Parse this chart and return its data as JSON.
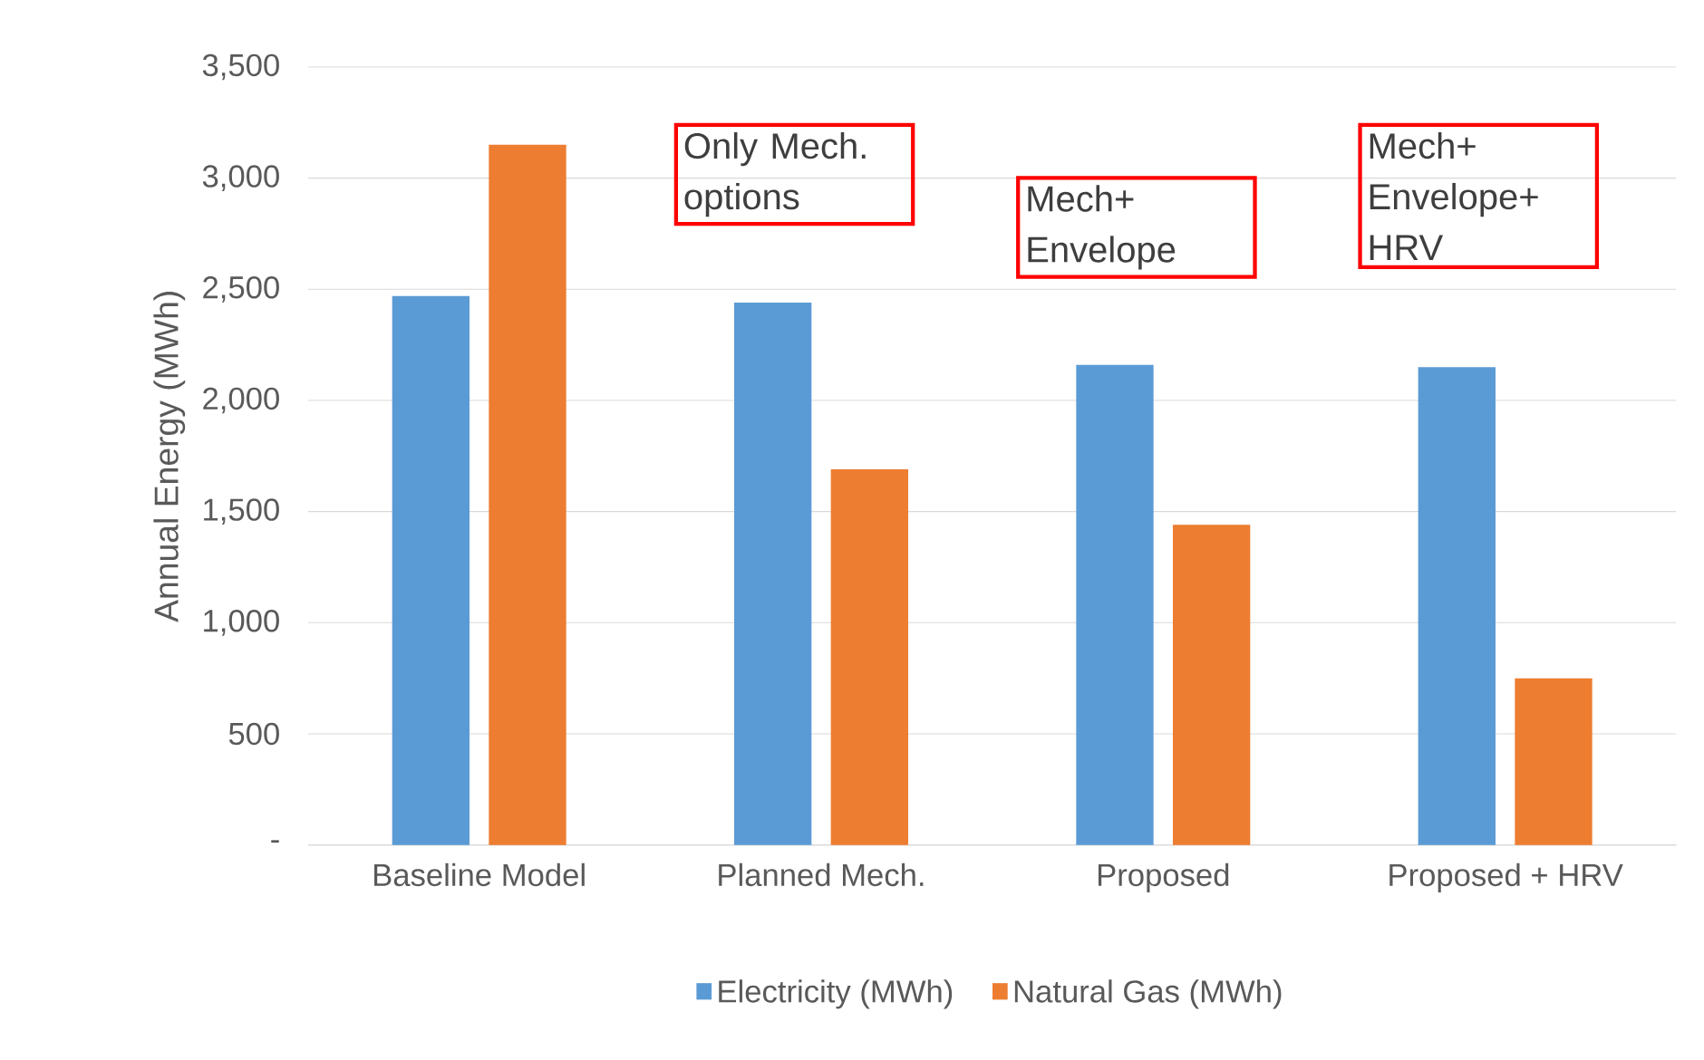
{
  "chart_data": {
    "type": "bar",
    "ylabel": "Annual Energy (MWh)",
    "categories": [
      "Baseline Model",
      "Planned Mech.",
      "Proposed",
      "Proposed + HRV"
    ],
    "series": [
      {
        "name": "Electricity (MWh)",
        "color": "#5b9bd5",
        "values": [
          2470,
          2440,
          2160,
          2150
        ]
      },
      {
        "name": "Natural Gas (MWh)",
        "color": "#ed7d31",
        "values": [
          3150,
          1690,
          1440,
          750
        ]
      }
    ],
    "ylim": [
      0,
      3500
    ],
    "yticks": [
      {
        "value": 0,
        "label": "-"
      },
      500,
      {
        "value": 1000,
        "label": "1,000"
      },
      {
        "value": 1500,
        "label": "1,500"
      },
      {
        "value": 2000,
        "label": "2,000"
      },
      {
        "value": 2500,
        "label": "2,500"
      },
      {
        "value": 3000,
        "label": "3,000"
      },
      {
        "value": 3500,
        "label": "3,500"
      }
    ],
    "grid": "y",
    "legend": "bottom",
    "annotations": [
      "Only Mech. options",
      "Mech+ Envelope",
      "Mech+ Envelope+ HRV"
    ]
  }
}
